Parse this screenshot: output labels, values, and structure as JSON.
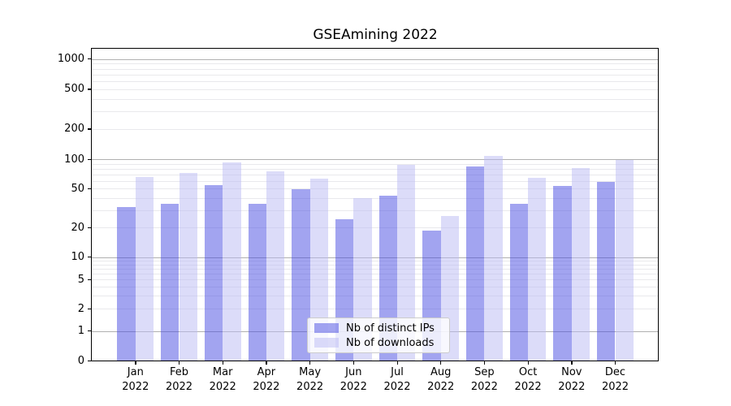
{
  "chart_data": {
    "type": "bar",
    "title": "GSEAmining 2022",
    "categories": [
      "Jan 2022",
      "Feb 2022",
      "Mar 2022",
      "Apr 2022",
      "May 2022",
      "Jun 2022",
      "Jul 2022",
      "Aug 2022",
      "Sep 2022",
      "Oct 2022",
      "Nov 2022",
      "Dec 2022"
    ],
    "series": [
      {
        "name": "Nb of distinct IPs",
        "color": "#a2a4f0",
        "fill": "rgba(69,73,226,0.5)",
        "values": [
          33,
          36,
          55,
          36,
          50,
          25,
          43,
          19,
          86,
          36,
          54,
          60
        ]
      },
      {
        "name": "Nb of downloads",
        "color": "#dcdcf8",
        "fill": "rgba(185,186,243,0.5)",
        "values": [
          67,
          74,
          95,
          77,
          65,
          41,
          89,
          27,
          110,
          66,
          83,
          100
        ]
      }
    ],
    "xlabel": "",
    "ylabel": "",
    "yscale": "symlog",
    "yticks": [
      0,
      1,
      2,
      5,
      10,
      20,
      50,
      100,
      200,
      500,
      1000
    ],
    "ylim": [
      0,
      1270
    ],
    "grid": "both",
    "grid_major_color": "#b0b0b0",
    "grid_minor_color": "#e9e9ec",
    "legend_position": "lower-center-inside",
    "background": "#ffffff"
  }
}
